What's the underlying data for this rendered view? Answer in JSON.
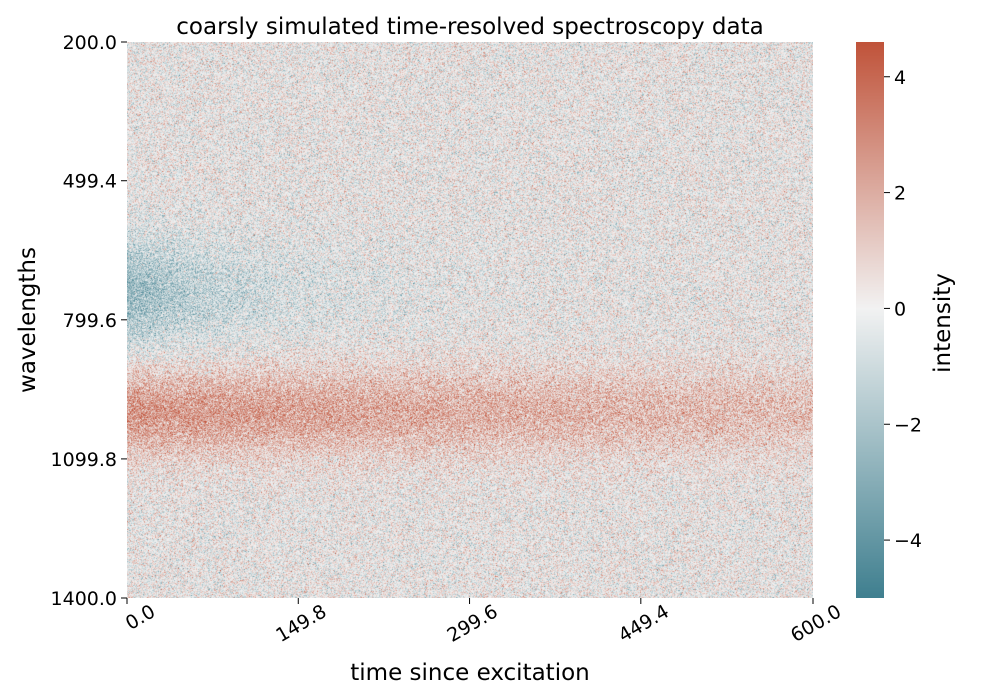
{
  "chart_data": {
    "type": "heatmap",
    "title": "coarsly simulated time-resolved spectroscopy data",
    "xlabel": "time since excitation",
    "ylabel": "wavelengths",
    "xlim": [
      0.0,
      600.0
    ],
    "ylim": [
      200.0,
      1400.0
    ],
    "x_ticks": [
      "0.0",
      "149.8",
      "299.6",
      "449.4",
      "600.0"
    ],
    "y_ticks": [
      "200.0",
      "499.4",
      "799.6",
      "1099.8",
      "1400.0"
    ],
    "x_tick_values": [
      0.0,
      149.8,
      299.6,
      449.4,
      600.0
    ],
    "y_tick_values": [
      200.0,
      499.4,
      799.6,
      1099.8,
      1400.0
    ],
    "y_inverted": true,
    "grid": false,
    "colorbar": {
      "label": "intensity",
      "range": [
        -5.0,
        4.6
      ],
      "ticks": [
        "−4",
        "−2",
        "0",
        "2",
        "4"
      ],
      "tick_values": [
        -4,
        -2,
        0,
        2,
        4
      ],
      "colors": {
        "low": "#3f7f8f",
        "mid": "#f2f2f2",
        "high": "#c0533a"
      }
    },
    "features": [
      {
        "kind": "negative-band",
        "wavelength_center": 745,
        "wavelength_width": 85,
        "amplitude": -2.6,
        "decay_time": 110
      },
      {
        "kind": "positive-band",
        "wavelength_center": 1000,
        "wavelength_width": 70,
        "amplitude": 2.6,
        "decay_time": 950
      }
    ],
    "noise_std": 1.1
  }
}
